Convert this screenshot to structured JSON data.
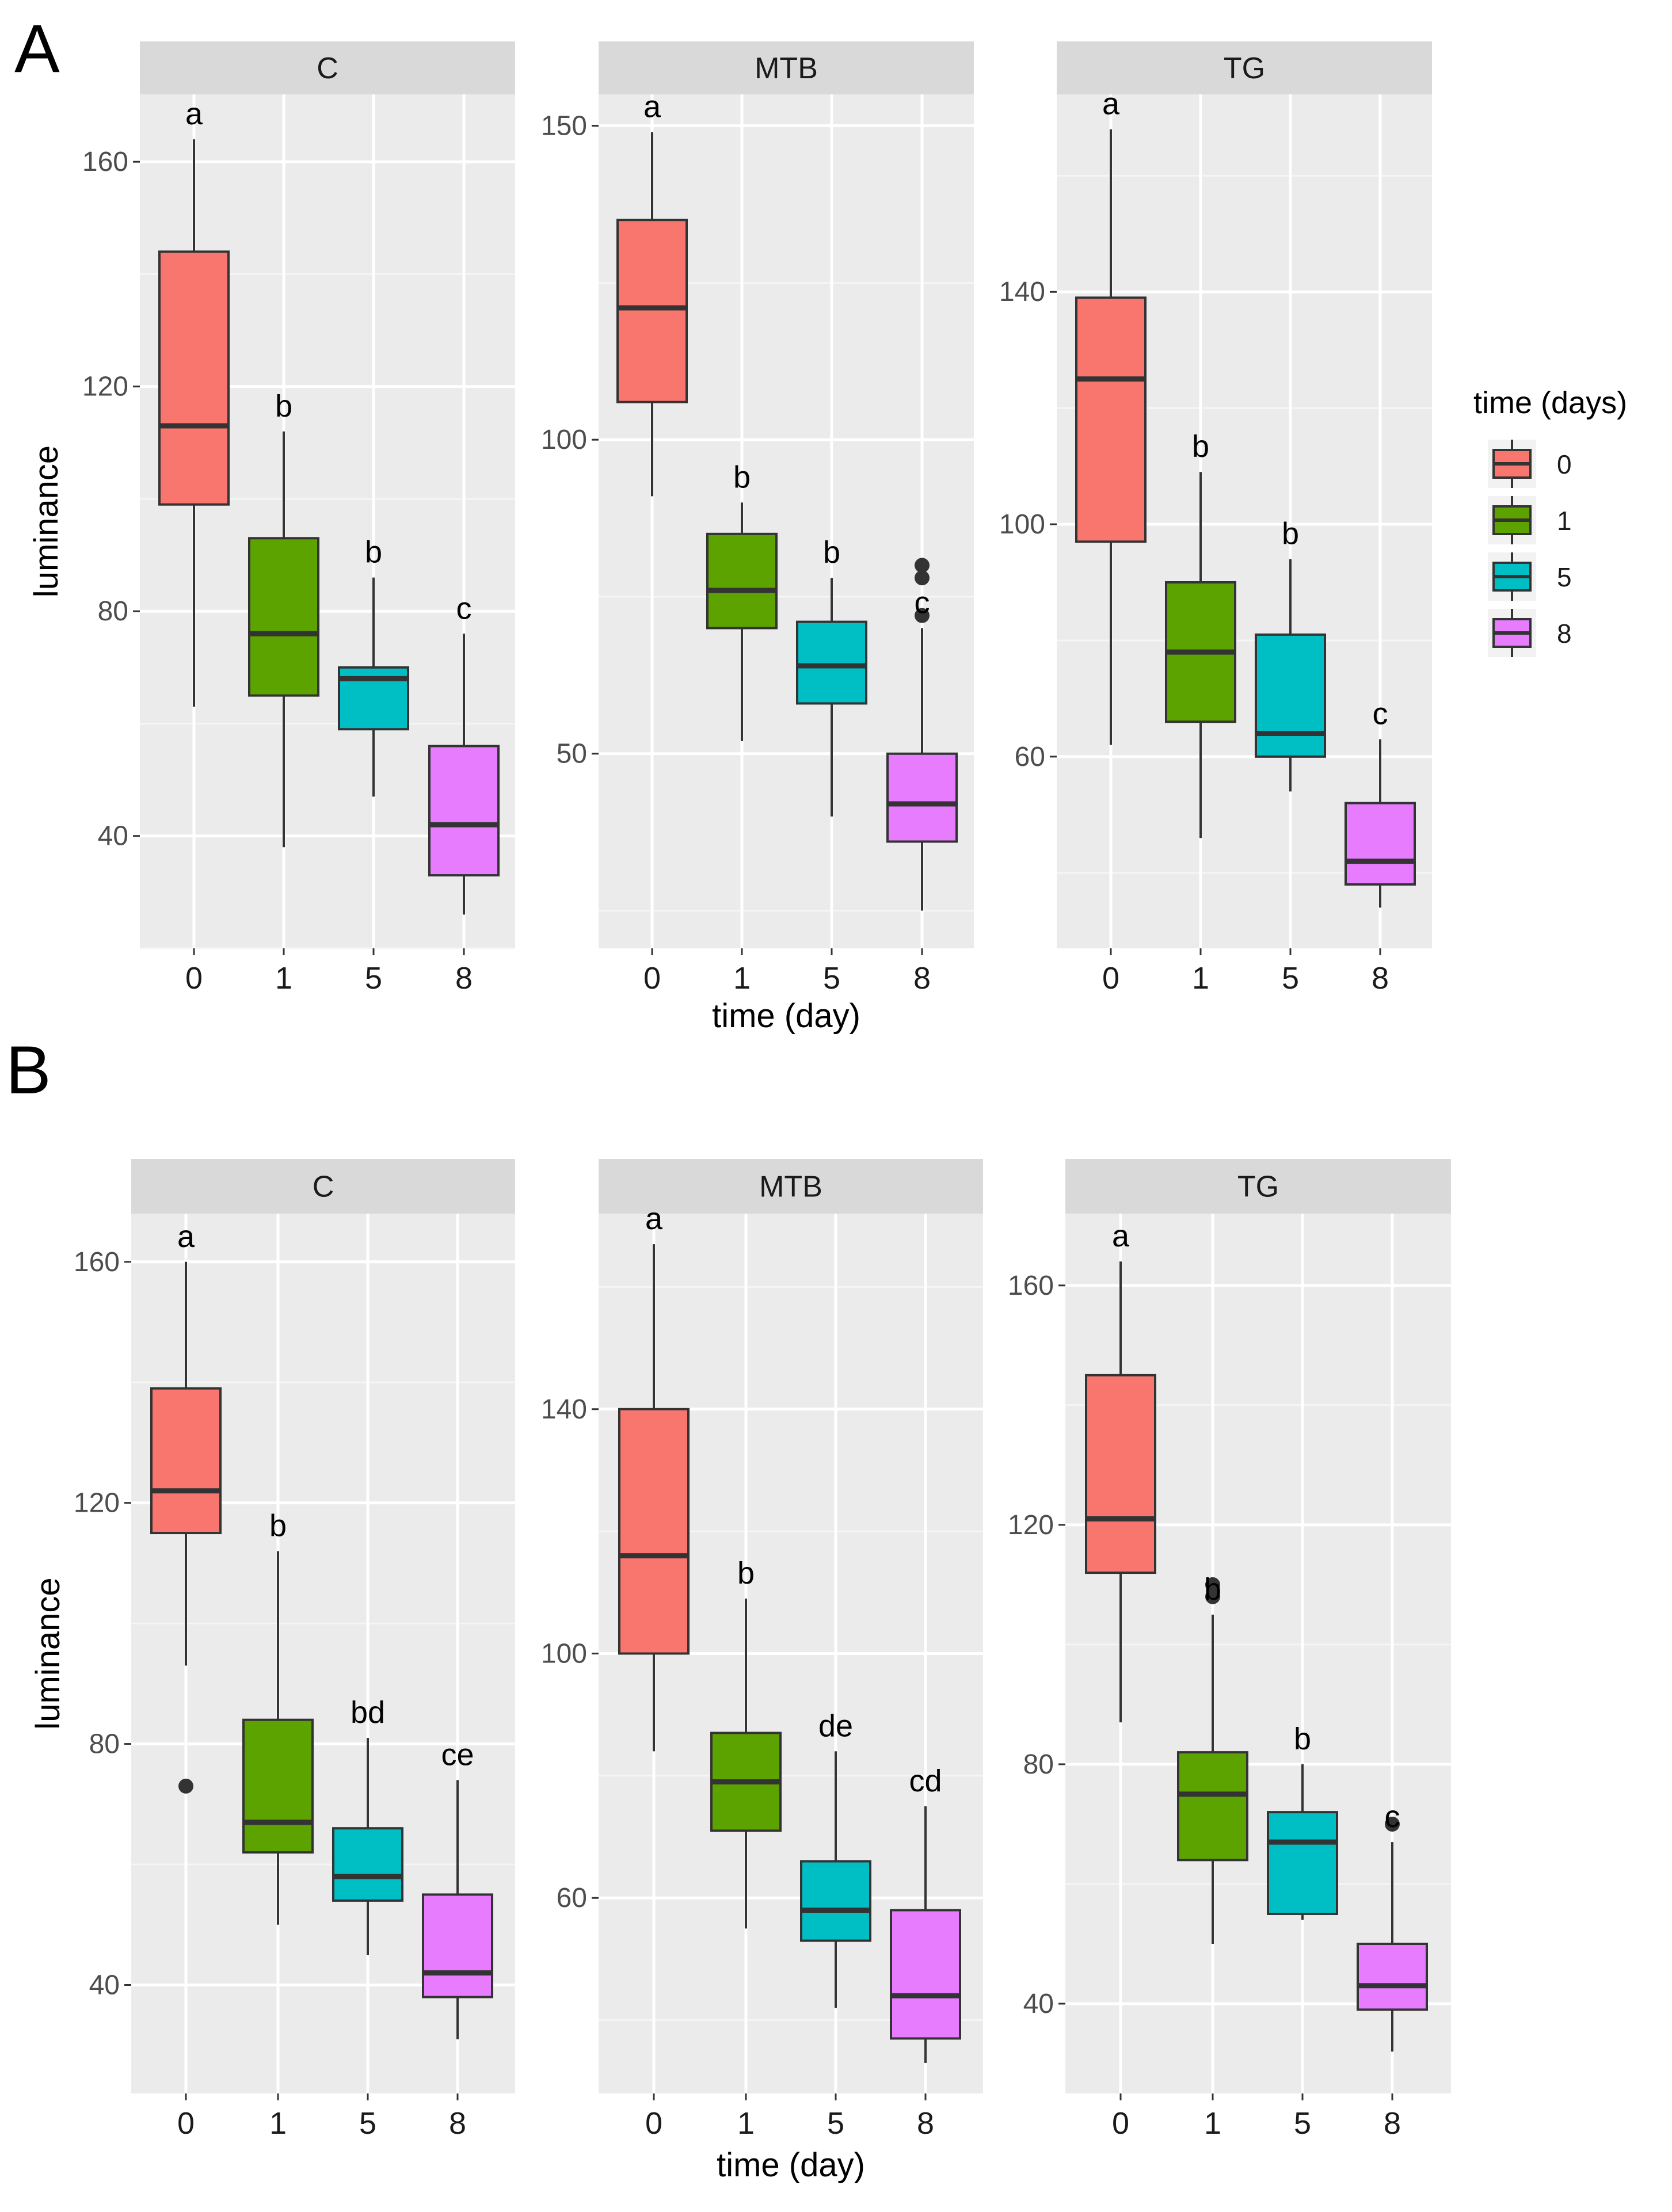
{
  "figure": {
    "legend": {
      "title": "time (days)",
      "items": [
        {
          "label": "0",
          "color": "#F8766D"
        },
        {
          "label": "1",
          "color": "#5DA300"
        },
        {
          "label": "5",
          "color": "#00BFC4"
        },
        {
          "label": "8",
          "color": "#E77CFF"
        }
      ]
    }
  },
  "chart_data": [
    {
      "type": "box",
      "panel": "A",
      "facet": "C",
      "xlabel": "",
      "ylabel": "luminance",
      "categories": [
        "0",
        "1",
        "5",
        "8"
      ],
      "ylim": [
        20,
        172
      ],
      "yticks": [
        40,
        80,
        120,
        160
      ],
      "boxes": [
        {
          "min": 63,
          "q1": 99,
          "median": 113,
          "q3": 144,
          "max": 164,
          "outliers": [],
          "letter": "a"
        },
        {
          "min": 38,
          "q1": 65,
          "median": 76,
          "q3": 93,
          "max": 112,
          "outliers": [],
          "letter": "b"
        },
        {
          "min": 47,
          "q1": 59,
          "median": 68,
          "q3": 70,
          "max": 86,
          "outliers": [],
          "letter": "b"
        },
        {
          "min": 26,
          "q1": 33,
          "median": 42,
          "q3": 56,
          "max": 76,
          "outliers": [],
          "letter": "c"
        }
      ]
    },
    {
      "type": "box",
      "panel": "A",
      "facet": "MTB",
      "xlabel": "time (day)",
      "ylabel": "",
      "categories": [
        "0",
        "1",
        "5",
        "8"
      ],
      "ylim": [
        19,
        155
      ],
      "yticks": [
        50,
        100,
        150
      ],
      "boxes": [
        {
          "min": 91,
          "q1": 106,
          "median": 121,
          "q3": 135,
          "max": 149,
          "outliers": [],
          "letter": "a"
        },
        {
          "min": 52,
          "q1": 70,
          "median": 76,
          "q3": 85,
          "max": 90,
          "outliers": [],
          "letter": "b"
        },
        {
          "min": 40,
          "q1": 58,
          "median": 64,
          "q3": 71,
          "max": 78,
          "outliers": [],
          "letter": "b"
        },
        {
          "min": 25,
          "q1": 36,
          "median": 42,
          "q3": 50,
          "max": 70,
          "outliers": [
            72,
            78,
            80
          ],
          "letter": "c"
        }
      ]
    },
    {
      "type": "box",
      "panel": "A",
      "facet": "TG",
      "xlabel": "",
      "ylabel": "",
      "categories": [
        "0",
        "1",
        "5",
        "8"
      ],
      "ylim": [
        27,
        174
      ],
      "yticks": [
        60,
        100,
        140
      ],
      "boxes": [
        {
          "min": 62,
          "q1": 97,
          "median": 125,
          "q3": 139,
          "max": 168,
          "outliers": [],
          "letter": "a"
        },
        {
          "min": 46,
          "q1": 66,
          "median": 78,
          "q3": 90,
          "max": 109,
          "outliers": [],
          "letter": "b"
        },
        {
          "min": 54,
          "q1": 60,
          "median": 64,
          "q3": 81,
          "max": 94,
          "outliers": [],
          "letter": "b"
        },
        {
          "min": 34,
          "q1": 38,
          "median": 42,
          "q3": 52,
          "max": 63,
          "outliers": [],
          "letter": "c"
        }
      ]
    },
    {
      "type": "box",
      "panel": "B",
      "facet": "C",
      "xlabel": "",
      "ylabel": "luminance",
      "categories": [
        "0",
        "1",
        "5",
        "8"
      ],
      "ylim": [
        22,
        168
      ],
      "yticks": [
        40,
        80,
        120,
        160
      ],
      "boxes": [
        {
          "min": 93,
          "q1": 115,
          "median": 122,
          "q3": 139,
          "max": 160,
          "outliers": [
            73
          ],
          "letter": "a"
        },
        {
          "min": 50,
          "q1": 62,
          "median": 67,
          "q3": 84,
          "max": 112,
          "outliers": [],
          "letter": "b"
        },
        {
          "min": 45,
          "q1": 54,
          "median": 58,
          "q3": 66,
          "max": 81,
          "outliers": [],
          "letter": "bd"
        },
        {
          "min": 31,
          "q1": 38,
          "median": 42,
          "q3": 55,
          "max": 74,
          "outliers": [],
          "letter": "ce"
        }
      ]
    },
    {
      "type": "box",
      "panel": "B",
      "facet": "MTB",
      "xlabel": "time (day)",
      "ylabel": "",
      "categories": [
        "0",
        "1",
        "5",
        "8"
      ],
      "ylim": [
        28,
        172
      ],
      "yticks": [
        60,
        100,
        140
      ],
      "boxes": [
        {
          "min": 84,
          "q1": 100,
          "median": 116,
          "q3": 140,
          "max": 167,
          "outliers": [],
          "letter": "a"
        },
        {
          "min": 55,
          "q1": 71,
          "median": 79,
          "q3": 87,
          "max": 109,
          "outliers": [],
          "letter": "b"
        },
        {
          "min": 42,
          "q1": 53,
          "median": 58,
          "q3": 66,
          "max": 84,
          "outliers": [],
          "letter": "de"
        },
        {
          "min": 33,
          "q1": 37,
          "median": 44,
          "q3": 58,
          "max": 75,
          "outliers": [],
          "letter": "cd"
        }
      ]
    },
    {
      "type": "box",
      "panel": "B",
      "facet": "TG",
      "xlabel": "",
      "ylabel": "",
      "categories": [
        "0",
        "1",
        "5",
        "8"
      ],
      "ylim": [
        25,
        172
      ],
      "yticks": [
        40,
        80,
        120,
        160
      ],
      "boxes": [
        {
          "min": 87,
          "q1": 112,
          "median": 121,
          "q3": 145,
          "max": 164,
          "outliers": [],
          "letter": "a"
        },
        {
          "min": 50,
          "q1": 64,
          "median": 75,
          "q3": 82,
          "max": 105,
          "outliers": [
            108,
            110
          ],
          "letter": "b"
        },
        {
          "min": 54,
          "q1": 55,
          "median": 67,
          "q3": 72,
          "max": 80,
          "outliers": [],
          "letter": "b"
        },
        {
          "min": 32,
          "q1": 39,
          "median": 43,
          "q3": 50,
          "max": 67,
          "outliers": [
            70
          ],
          "letter": "c"
        }
      ]
    }
  ]
}
